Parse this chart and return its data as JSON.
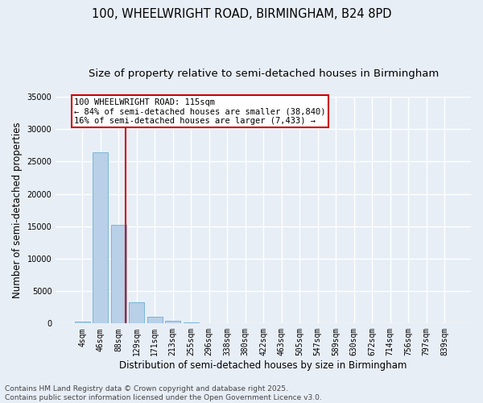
{
  "title_line1": "100, WHEELWRIGHT ROAD, BIRMINGHAM, B24 8PD",
  "title_line2": "Size of property relative to semi-detached houses in Birmingham",
  "xlabel": "Distribution of semi-detached houses by size in Birmingham",
  "ylabel": "Number of semi-detached properties",
  "footer_line1": "Contains HM Land Registry data © Crown copyright and database right 2025.",
  "footer_line2": "Contains public sector information licensed under the Open Government Licence v3.0.",
  "bar_labels": [
    "4sqm",
    "46sqm",
    "88sqm",
    "129sqm",
    "171sqm",
    "213sqm",
    "255sqm",
    "296sqm",
    "338sqm",
    "380sqm",
    "422sqm",
    "463sqm",
    "505sqm",
    "547sqm",
    "589sqm",
    "630sqm",
    "672sqm",
    "714sqm",
    "756sqm",
    "797sqm",
    "839sqm"
  ],
  "bar_values": [
    350,
    26400,
    15200,
    3300,
    1050,
    450,
    150,
    30,
    0,
    0,
    0,
    0,
    0,
    0,
    0,
    0,
    0,
    0,
    0,
    0,
    0
  ],
  "bar_color": "#b8d0e8",
  "bar_edge_color": "#6aaed6",
  "background_color": "#e8eef6",
  "grid_color": "#ffffff",
  "ylim": [
    0,
    35000
  ],
  "yticks": [
    0,
    5000,
    10000,
    15000,
    20000,
    25000,
    30000,
    35000
  ],
  "annotation_box_text": "100 WHEELWRIGHT ROAD: 115sqm\n← 84% of semi-detached houses are smaller (38,840)\n16% of semi-detached houses are larger (7,433) →",
  "vline_x_index": 2.4,
  "annotation_box_color": "#cc0000",
  "title_fontsize": 10.5,
  "subtitle_fontsize": 9.5,
  "axis_label_fontsize": 8.5,
  "tick_fontsize": 7,
  "annotation_fontsize": 7.5,
  "footer_fontsize": 6.5
}
